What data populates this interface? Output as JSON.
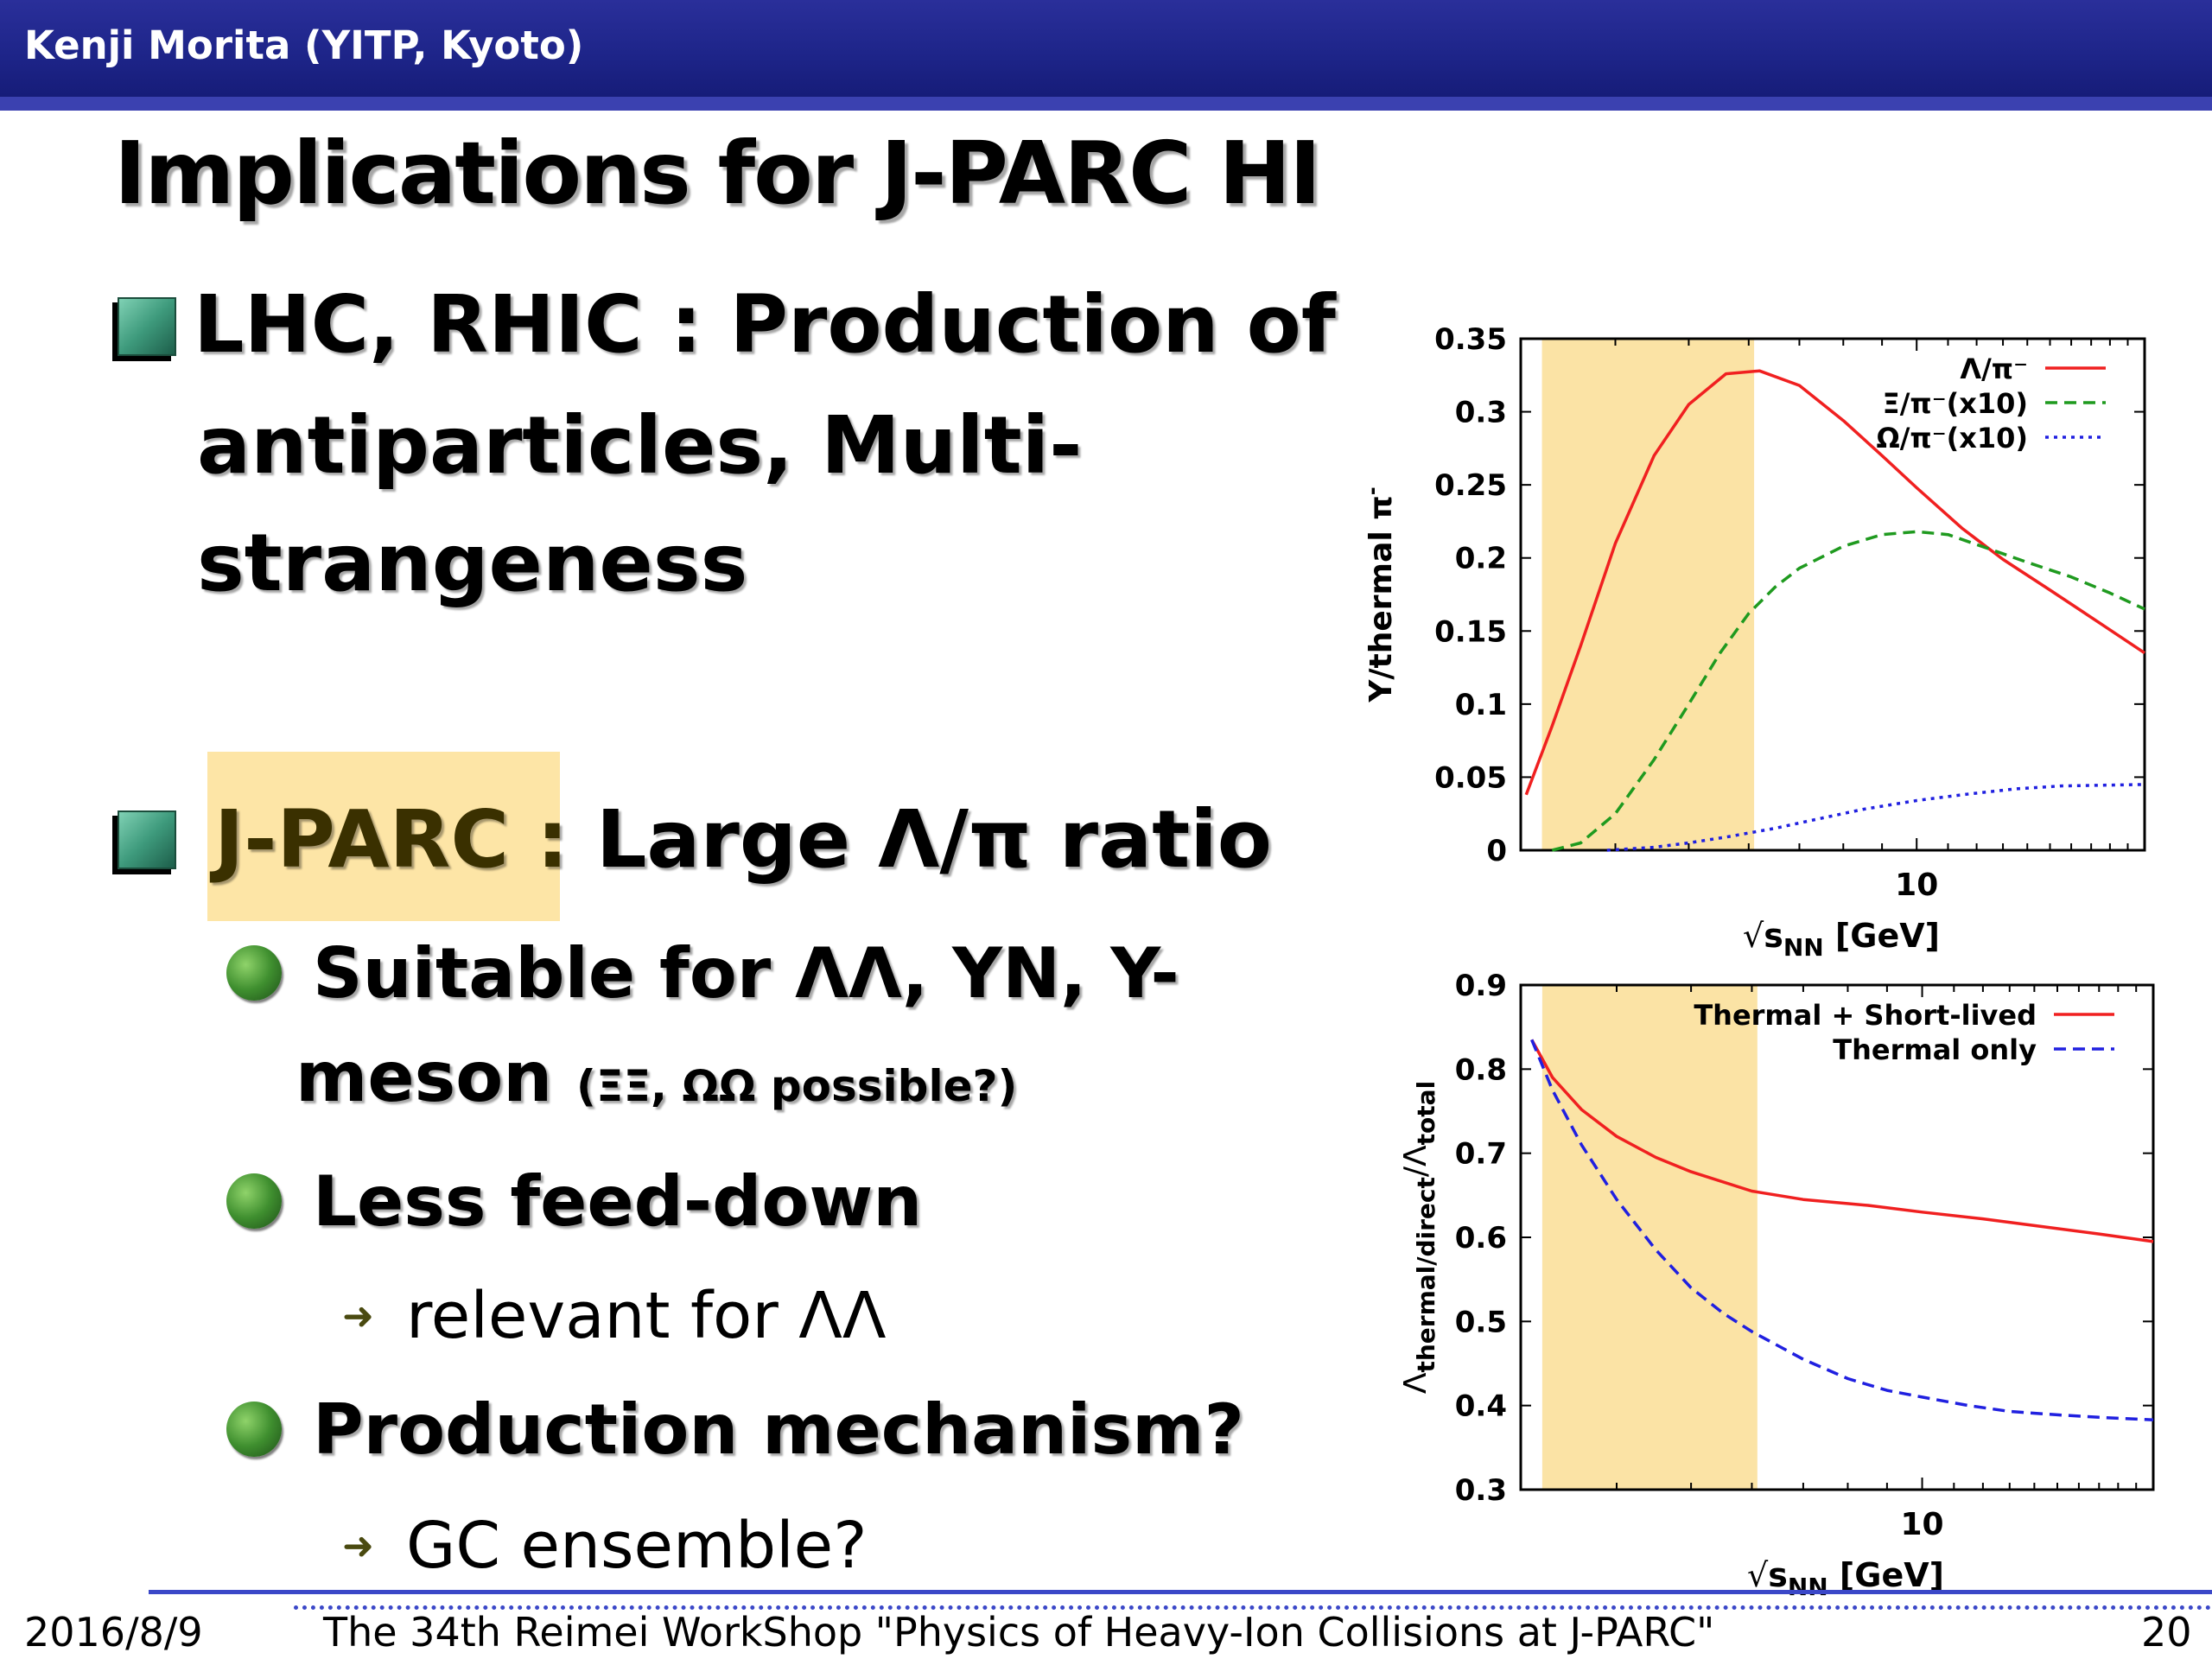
{
  "header": {
    "author": "Kenji Morita (YITP, Kyoto)"
  },
  "slide": {
    "title": "Implications for J-PARC HI",
    "bullet1": {
      "line1": " LHC, RHIC : Production of",
      "line2": "antiparticles, Multi-",
      "line3": "strangeness"
    },
    "bullet2": {
      "highlight": "J-PARC : ",
      "rest": "Large Λ/π ratio"
    },
    "sub1": {
      "line1": "Suitable for ΛΛ, YN, Y-",
      "line2": "meson ",
      "small": "(ΞΞ, ΩΩ possible?)"
    },
    "sub2": {
      "text": "Less feed-down",
      "subsub": "relevant for ΛΛ"
    },
    "sub3": {
      "text": "Production mechanism?",
      "subsub": "GC ensemble?"
    }
  },
  "footer": {
    "date": "2016/8/9",
    "event": "The 34th Reimei WorkShop \"Physics of Heavy-Ion Collisions at J-PARC\"",
    "page": "20"
  },
  "colors": {
    "highlight": "#fde5a6",
    "band": "#fbe3a5",
    "red": "#f02020",
    "green": "#1f9a1f",
    "blue": "#2020e0",
    "header": "#1d2488"
  },
  "chart_data": [
    {
      "type": "line",
      "xlabel_sqrt": "√",
      "xlabel_main": "s",
      "xlabel_sub": "NN",
      "xlabel_unit": " [GeV]",
      "ylabel": "Y/thermal π",
      "ylabel_sup": "-",
      "xlim": [
        3,
        20
      ],
      "ylim": [
        0,
        0.35
      ],
      "x_scale": "log",
      "x_ticks": [
        10
      ],
      "x_tick_labels": [
        "10"
      ],
      "y_ticks": [
        0,
        0.05,
        0.1,
        0.15,
        0.2,
        0.25,
        0.3,
        0.35
      ],
      "y_tick_labels": [
        "0",
        "0.05",
        "0.1",
        "0.15",
        "0.2",
        "0.25",
        "0.3",
        "0.35"
      ],
      "band": [
        3.2,
        6.1
      ],
      "legend_position": "top-right",
      "series": [
        {
          "name": "Λ/π⁻",
          "style": "solid",
          "color": "#f02020",
          "x": [
            3.05,
            3.3,
            3.6,
            4.0,
            4.5,
            5.0,
            5.6,
            6.2,
            7.0,
            8.0,
            9.0,
            10.0,
            11.5,
            13,
            15,
            17.5,
            20
          ],
          "y": [
            0.038,
            0.085,
            0.14,
            0.21,
            0.27,
            0.305,
            0.326,
            0.328,
            0.318,
            0.294,
            0.27,
            0.248,
            0.22,
            0.199,
            0.178,
            0.155,
            0.135
          ]
        },
        {
          "name": "Ξ/π⁻(x10)",
          "style": "dashed",
          "color": "#1f9a1f",
          "x": [
            3.3,
            3.6,
            4.0,
            4.5,
            5.0,
            5.5,
            6.0,
            6.5,
            7.0,
            8.0,
            9.0,
            10.0,
            11.0,
            12.5,
            14,
            16,
            18,
            20
          ],
          "y": [
            0.0,
            0.005,
            0.025,
            0.062,
            0.1,
            0.135,
            0.162,
            0.18,
            0.193,
            0.208,
            0.216,
            0.218,
            0.216,
            0.206,
            0.197,
            0.187,
            0.176,
            0.165
          ]
        },
        {
          "name": "Ω/π⁻(x10)",
          "style": "dotted",
          "color": "#2020e0",
          "x": [
            3.9,
            4.5,
            5.0,
            5.6,
            6.5,
            7.5,
            8.5,
            10.0,
            11.5,
            13.5,
            15.5,
            20
          ],
          "y": [
            0.0,
            0.002,
            0.005,
            0.009,
            0.015,
            0.022,
            0.028,
            0.034,
            0.038,
            0.042,
            0.044,
            0.045
          ]
        }
      ]
    },
    {
      "type": "line",
      "xlabel_sqrt": "√",
      "xlabel_main": "s",
      "xlabel_sub": "NN",
      "xlabel_unit": " [GeV]",
      "ylabel_base": "Λ",
      "ylabel_sub1": "thermal/direct",
      "ylabel_mid": "/Λ",
      "ylabel_sub2": "total",
      "xlim": [
        3,
        20
      ],
      "ylim": [
        0.3,
        0.9
      ],
      "x_scale": "log",
      "x_ticks": [
        10
      ],
      "x_tick_labels": [
        "10"
      ],
      "y_ticks": [
        0.3,
        0.4,
        0.5,
        0.6,
        0.7,
        0.8,
        0.9
      ],
      "y_tick_labels": [
        "0.3",
        "0.4",
        "0.5",
        "0.6",
        "0.7",
        "0.8",
        "0.9"
      ],
      "band": [
        3.2,
        6.1
      ],
      "legend_position": "top-right",
      "series": [
        {
          "name": "Thermal + Short-lived",
          "style": "solid",
          "color": "#f02020",
          "x": [
            3.1,
            3.3,
            3.6,
            4.0,
            4.5,
            5.0,
            6.0,
            7.0,
            8.5,
            10.0,
            12.0,
            14.0,
            17.0,
            20.0
          ],
          "y": [
            0.835,
            0.79,
            0.752,
            0.72,
            0.695,
            0.678,
            0.655,
            0.645,
            0.638,
            0.63,
            0.622,
            0.614,
            0.604,
            0.595
          ]
        },
        {
          "name": "Thermal only",
          "style": "dashed",
          "color": "#2020e0",
          "x": [
            3.1,
            3.3,
            3.6,
            4.0,
            4.5,
            5.0,
            5.5,
            6.0,
            7.0,
            8.0,
            9.0,
            10.0,
            11.5,
            13.0,
            15.0,
            17.0,
            20.0
          ],
          "y": [
            0.835,
            0.775,
            0.71,
            0.645,
            0.585,
            0.54,
            0.51,
            0.488,
            0.455,
            0.432,
            0.418,
            0.41,
            0.4,
            0.393,
            0.389,
            0.386,
            0.383
          ]
        }
      ]
    }
  ]
}
